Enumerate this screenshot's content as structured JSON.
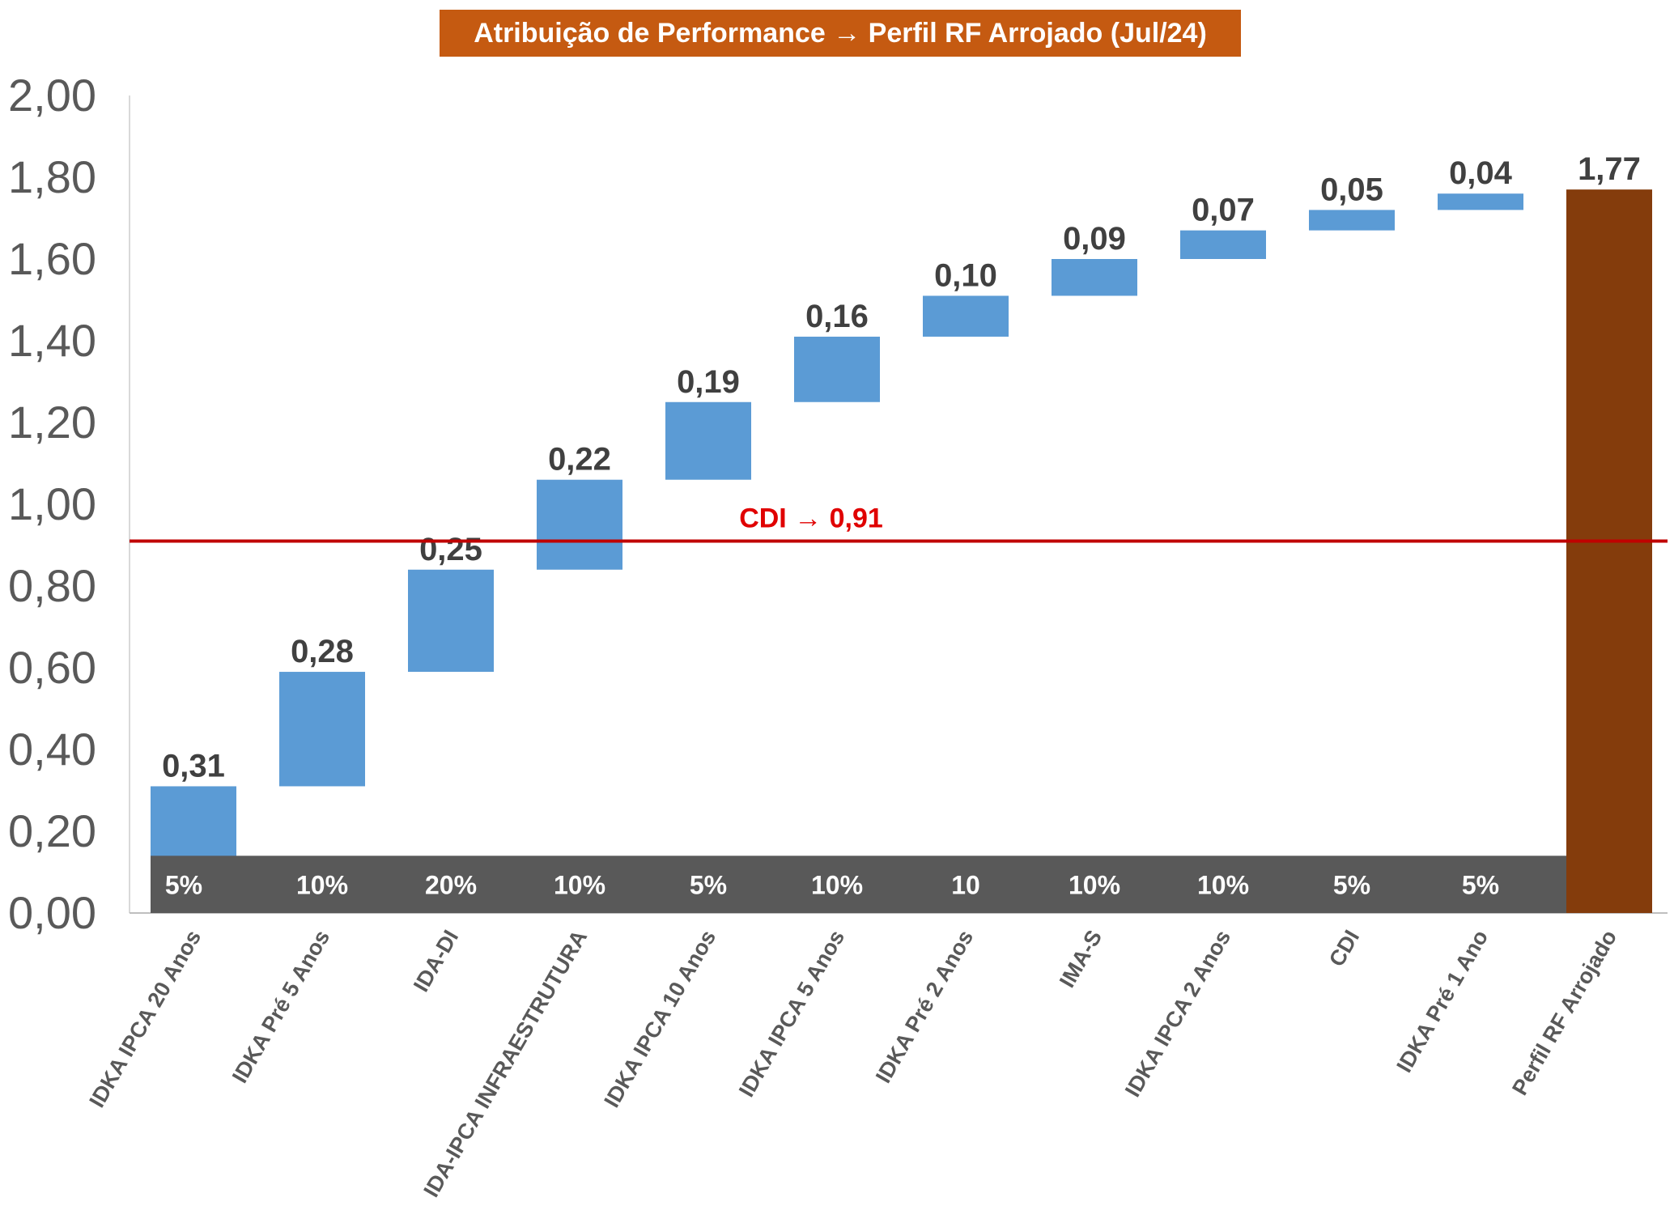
{
  "chart_data": {
    "type": "bar",
    "subtype": "waterfall",
    "title": "Atribuição de Performance → Perfil RF Arrojado (Jul/24)",
    "ylim": [
      0,
      2.0
    ],
    "yticks": [
      "0,00",
      "0,20",
      "0,40",
      "0,60",
      "0,80",
      "1,00",
      "1,20",
      "1,40",
      "1,60",
      "1,80",
      "2,00"
    ],
    "categories": [
      "IDKA IPCA 20 Anos",
      "IDKA Pré 5 Anos",
      "IDA-DI",
      "IDA-IPCA INFRAESTRUTURA",
      "IDKA IPCA 10 Anos",
      "IDKA IPCA 5 Anos",
      "IDKA Pré 2 Anos",
      "IMA-S",
      "IDKA IPCA 2 Anos",
      "CDI",
      "IDKA Pré 1 Ano",
      "Perfil RF Arrojado"
    ],
    "values": [
      0.31,
      0.28,
      0.25,
      0.22,
      0.19,
      0.16,
      0.1,
      0.09,
      0.07,
      0.05,
      0.04,
      1.77
    ],
    "value_labels": [
      "0,31",
      "0,28",
      "0,25",
      "0,22",
      "0,19",
      "0,16",
      "0,10",
      "0,09",
      "0,07",
      "0,05",
      "0,04",
      "1,77"
    ],
    "weights": [
      "5%",
      "10%",
      "20%",
      "10%",
      "5%",
      "10%",
      "10",
      "10%",
      "10%",
      "5%",
      "5%"
    ],
    "reference_line": {
      "label": "CDI → 0,91",
      "value": 0.91
    },
    "colors": {
      "increment": "#5b9bd5",
      "total": "#843c0c",
      "weights_band": "#595959",
      "reference": "#c00000",
      "reference_label": "#e00000",
      "title_bg": "#c55a11"
    }
  }
}
